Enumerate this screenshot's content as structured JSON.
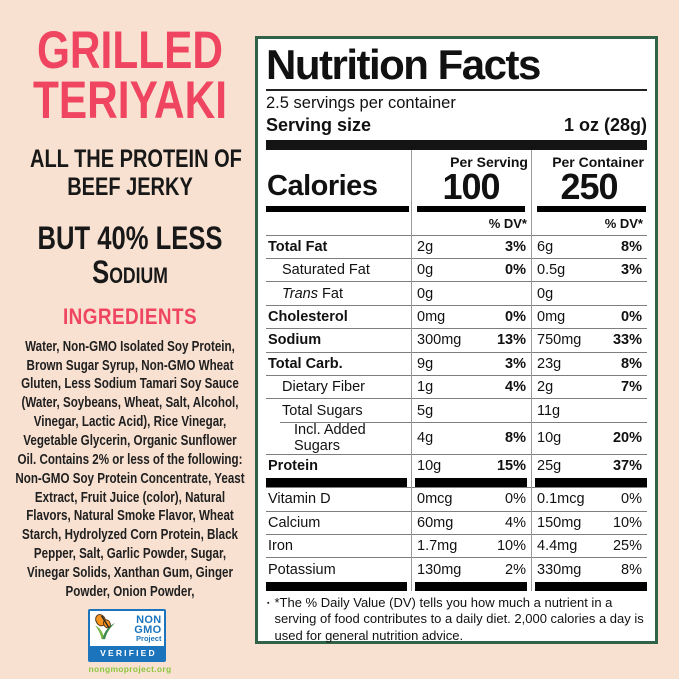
{
  "colors": {
    "background": "#f8e1d1",
    "accent_pink": "#ef4560",
    "panel_border_green": "#2f6246",
    "seal_blue": "#1c75bc",
    "seal_orange": "#f7941d",
    "seal_green": "#8cc63f"
  },
  "left_panel": {
    "title_line1": "GRILLED",
    "title_line2": "TERIYAKI",
    "tagline1_line1": "ALL THE PROTEIN OF",
    "tagline1_line2": "BEEF JERKY",
    "tagline2_line1": "BUT 40% LESS",
    "tagline2_line2": "Sodium",
    "ingredients_heading": "INGREDIENTS",
    "ingredients_text": "Water, Non-GMO Isolated Soy Protein, Brown Sugar Syrup, Non-GMO Wheat Gluten, Less Sodium Tamari Soy Sauce (Water, Soybeans, Wheat, Salt, Alcohol, Vinegar, Lactic Acid), Rice Vinegar, Vegetable Glycerin, Organic Sunflower Oil. Contains 2% or less of the following: Non-GMO Soy Protein Concentrate, Yeast Extract, Fruit Juice (color), Natural Flavors, Natural Smoke Flavor, Wheat Starch, Hydrolyzed Corn Protein, Black Pepper, Salt, Garlic Powder, Sugar, Vinegar Solids, Xanthan Gum, Ginger Powder, Onion Powder,",
    "seal": {
      "line1": "NON",
      "line2": "GMO",
      "line3": "Project",
      "verified": "VERIFIED",
      "url": "nongmoproject.org"
    }
  },
  "label": {
    "title": "Nutrition Facts",
    "servings_per_container": "2.5 servings per container",
    "serving_size_label": "Serving size",
    "serving_size_value": "1 oz (28g)",
    "col1_header": "Per Serving",
    "col2_header": "Per Container",
    "calories_label": "Calories",
    "calories_per_serving": "100",
    "calories_per_container": "250",
    "dv_header": "% DV*",
    "rows": [
      {
        "name": "Total Fat",
        "bold": true,
        "indent": 0,
        "a1": "2g",
        "d1": "3%",
        "a2": "6g",
        "d2": "8%",
        "dvBold": true
      },
      {
        "name": "Saturated Fat",
        "indent": 1,
        "a1": "0g",
        "d1": "0%",
        "a2": "0.5g",
        "d2": "3%",
        "dvBold": true
      },
      {
        "name": "Trans Fat",
        "indent": 1,
        "italicFirst": true,
        "a1": "0g",
        "d1": "",
        "a2": "0g",
        "d2": "",
        "dvBold": true
      },
      {
        "name": "Cholesterol",
        "bold": true,
        "indent": 0,
        "a1": "0mg",
        "d1": "0%",
        "a2": "0mg",
        "d2": "0%",
        "dvBold": true
      },
      {
        "name": "Sodium",
        "bold": true,
        "indent": 0,
        "a1": "300mg",
        "d1": "13%",
        "a2": "750mg",
        "d2": "33%",
        "dvBold": true
      },
      {
        "name": "Total Carb.",
        "bold": true,
        "indent": 0,
        "a1": "9g",
        "d1": "3%",
        "a2": "23g",
        "d2": "8%",
        "dvBold": true
      },
      {
        "name": "Dietary Fiber",
        "indent": 1,
        "a1": "1g",
        "d1": "4%",
        "a2": "2g",
        "d2": "7%",
        "dvBold": true
      },
      {
        "name": "Total Sugars",
        "indent": 1,
        "a1": "5g",
        "d1": "",
        "a2": "11g",
        "d2": "",
        "dvBold": true
      },
      {
        "name": "Incl. Added Sugars",
        "indent": 2,
        "cut": true,
        "a1": "4g",
        "d1": "8%",
        "a2": "10g",
        "d2": "20%",
        "dvBold": true
      },
      {
        "name": "Protein",
        "bold": true,
        "indent": 0,
        "a1": "10g",
        "d1": "15%",
        "a2": "25g",
        "d2": "37%",
        "dvBold": true
      },
      {
        "divider": "bars"
      },
      {
        "name": "Vitamin D",
        "indent": 0,
        "a1": "0mcg",
        "d1": "0%",
        "a2": "0.1mcg",
        "d2": "0%",
        "dvBold": false
      },
      {
        "name": "Calcium",
        "indent": 0,
        "a1": "60mg",
        "d1": "4%",
        "a2": "150mg",
        "d2": "10%",
        "dvBold": false
      },
      {
        "name": "Iron",
        "indent": 0,
        "a1": "1.7mg",
        "d1": "10%",
        "a2": "4.4mg",
        "d2": "25%",
        "dvBold": false
      },
      {
        "name": "Potassium",
        "indent": 0,
        "a1": "130mg",
        "d1": "2%",
        "a2": "330mg",
        "d2": "8%",
        "dvBold": false
      },
      {
        "divider": "bars"
      }
    ],
    "footnote": "*The % Daily Value (DV) tells you how much a nutrient in a serving of food contributes to a daily diet. 2,000 calories a day is used for general nutrition advice."
  }
}
